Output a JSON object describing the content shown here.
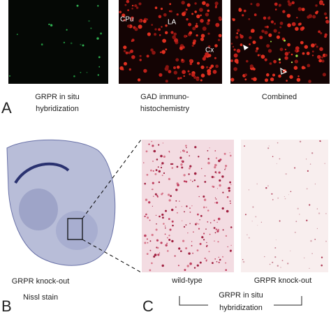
{
  "panel_a": {
    "label": "A",
    "images": [
      {
        "caption": [
          "GRPR in situ",
          "hybridization"
        ]
      },
      {
        "annotations": [
          "CPu",
          "LA",
          "Cx"
        ],
        "caption": [
          "GAD immuno-",
          "histochemistry"
        ]
      },
      {
        "caption": [
          "Combined"
        ]
      }
    ]
  },
  "panel_b": {
    "label": "B",
    "caption": [
      "GRPR knock-out",
      "Nissl stain"
    ]
  },
  "panel_c": {
    "label": "C",
    "images": [
      {
        "caption": "wild-type"
      },
      {
        "caption": "GRPR knock-out"
      }
    ],
    "group_caption": [
      "GRPR in situ",
      "hybridization"
    ]
  }
}
